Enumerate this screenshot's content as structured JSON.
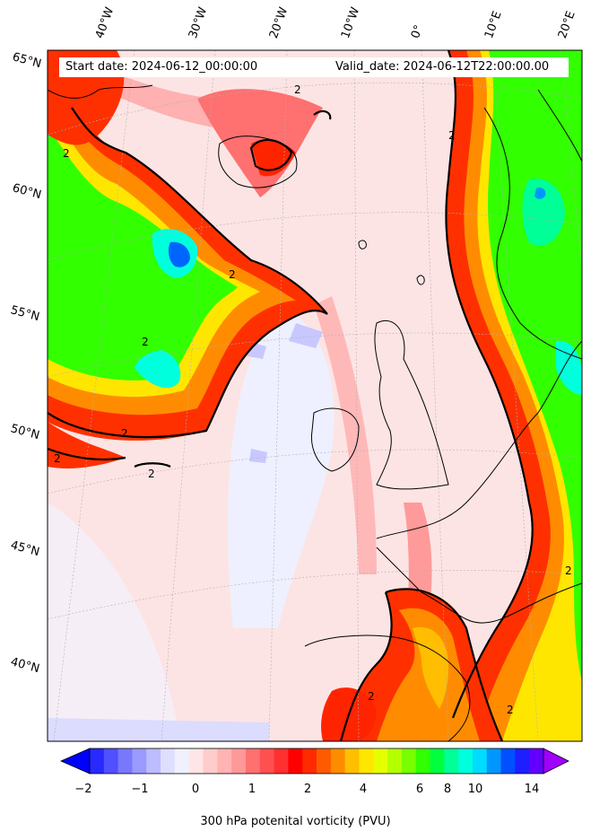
{
  "header": {
    "start_label": "Start date: 2024-06-12_00:00:00",
    "valid_label": "Valid_date: 2024-06-12T22:00:00.00"
  },
  "longitude_labels": [
    "40°W",
    "30°W",
    "20°W",
    "10°W",
    "0°",
    "10°E",
    "20°E"
  ],
  "latitude_labels": [
    "65°N",
    "60°N",
    "55°N",
    "50°N",
    "45°N",
    "40°N"
  ],
  "contour_label": "2",
  "colorbar": {
    "label": "300 hPa potenital vorticity (PVU)",
    "ticks": [
      "−2",
      "−1",
      "0",
      "1",
      "2",
      "4",
      "6",
      "8",
      "10",
      "14"
    ],
    "extend": "both",
    "colors": [
      "#0000ff",
      "#2828ff",
      "#5050ff",
      "#7878ff",
      "#9a9aff",
      "#bcbcff",
      "#dedeff",
      "#f0f0ff",
      "#ffe6e6",
      "#ffcccc",
      "#ffb3b3",
      "#ff9999",
      "#ff7070",
      "#ff5050",
      "#ff3030",
      "#ff0000",
      "#ff2a00",
      "#ff5a00",
      "#ff8c00",
      "#ffbe00",
      "#ffe600",
      "#e6ff00",
      "#b4ff00",
      "#78ff00",
      "#32ff00",
      "#00ff3c",
      "#00ff96",
      "#00ffdc",
      "#00dcff",
      "#0096ff",
      "#0050ff",
      "#1e1eff",
      "#6400ff",
      "#a000ff"
    ]
  },
  "field_colors": {
    "background": "#fde4e4",
    "low_pv": "#eef0ff",
    "medium_pv": "#ff9a9a",
    "high_red": "#ff2400",
    "orange": "#ff8c00",
    "yellow": "#fff000",
    "green": "#2cff00",
    "cyan": "#00ffe0",
    "blue": "#0064ff"
  }
}
